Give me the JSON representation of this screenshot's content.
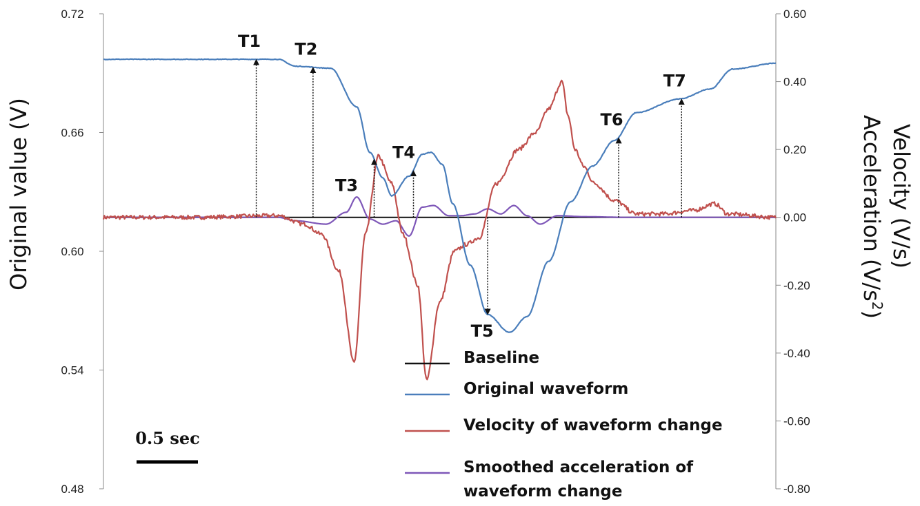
{
  "chart_data": {
    "type": "line",
    "left_axis": {
      "label": "Original value (V)",
      "ylim": [
        0.48,
        0.72
      ],
      "ticks": [
        "0.72",
        "0.66",
        "0.60",
        "0.54",
        "0.48"
      ],
      "tick_values": [
        0.72,
        0.66,
        0.6,
        0.54,
        0.48
      ]
    },
    "right_axis": {
      "label_line1": "Velocity (V/s)",
      "label_line2": "Acceleration (V/s",
      "label_superscript": "2",
      "label_close": ")",
      "ylim": [
        -0.8,
        0.6
      ],
      "ticks": [
        "0.60",
        "0.40",
        "0.20",
        "0.00",
        "-0.20",
        "-0.40",
        "-0.60",
        "-0.80"
      ],
      "tick_values": [
        0.6,
        0.4,
        0.2,
        0.0,
        -0.2,
        -0.4,
        -0.6,
        -0.8
      ]
    },
    "x_range_sec": [
      0,
      7.7
    ],
    "grid": false,
    "legend_position": "bottom-right",
    "scale_bar": {
      "label": "0.5 sec",
      "seconds": 0.5
    },
    "series": [
      {
        "name": "Baseline",
        "axis": "right",
        "color": "#111111",
        "x": [
          0,
          7.7
        ],
        "y": [
          0.0,
          0.0
        ]
      },
      {
        "name": "Original waveform",
        "axis": "left",
        "color": "#4a7ebb",
        "x": [
          0,
          1.0,
          2.0,
          2.2,
          2.6,
          2.9,
          3.05,
          3.2,
          3.3,
          3.5,
          3.65,
          3.75,
          3.88,
          4.0,
          4.2,
          4.4,
          4.65,
          4.85,
          5.1,
          5.35,
          5.6,
          5.85,
          6.1,
          6.6,
          6.95,
          7.2,
          7.7
        ],
        "y": [
          0.697,
          0.697,
          0.697,
          0.6935,
          0.6925,
          0.673,
          0.65,
          0.637,
          0.628,
          0.638,
          0.649,
          0.65,
          0.644,
          0.624,
          0.593,
          0.568,
          0.559,
          0.567,
          0.595,
          0.625,
          0.643,
          0.656,
          0.67,
          0.677,
          0.682,
          0.692,
          0.695
        ]
      },
      {
        "name": "Velocity of waveform change",
        "axis": "right",
        "color": "#c0504d",
        "x": [
          0,
          1.0,
          2.0,
          2.3,
          2.5,
          2.7,
          2.87,
          3.0,
          3.15,
          3.3,
          3.43,
          3.6,
          3.7,
          3.85,
          4.02,
          4.15,
          4.3,
          4.5,
          4.75,
          4.95,
          5.1,
          5.25,
          5.32,
          5.4,
          5.5,
          5.62,
          5.85,
          6.1,
          6.4,
          6.75,
          7.0,
          7.15,
          7.7
        ],
        "y": [
          0.0,
          0.0,
          0.005,
          -0.02,
          -0.05,
          -0.16,
          -0.43,
          -0.05,
          0.18,
          0.1,
          -0.05,
          -0.2,
          -0.48,
          -0.25,
          -0.1,
          -0.08,
          -0.06,
          0.1,
          0.2,
          0.25,
          0.32,
          0.4,
          0.3,
          0.2,
          0.15,
          0.1,
          0.05,
          0.01,
          0.01,
          0.02,
          0.04,
          0.01,
          0.0
        ]
      },
      {
        "name": "Smoothed acceleration of waveform change",
        "axis": "right",
        "color": "#7e57b8",
        "x": [
          0,
          1.0,
          2.0,
          2.2,
          2.55,
          2.78,
          2.9,
          3.05,
          3.2,
          3.35,
          3.5,
          3.65,
          3.78,
          3.95,
          4.1,
          4.25,
          4.4,
          4.55,
          4.7,
          4.85,
          5.0,
          5.2,
          5.5,
          6.0,
          7.7
        ],
        "y": [
          0.0,
          0.0,
          0.0,
          -0.01,
          -0.02,
          0.015,
          0.06,
          -0.005,
          -0.02,
          -0.01,
          -0.055,
          0.03,
          0.035,
          0.005,
          0.005,
          0.01,
          0.025,
          0.01,
          0.035,
          0.005,
          -0.02,
          0.005,
          0.002,
          0.0,
          0.0
        ]
      }
    ],
    "events": [
      {
        "label": "T1",
        "x": 1.75
      },
      {
        "label": "T2",
        "x": 2.4
      },
      {
        "label": "T3",
        "x": 3.1
      },
      {
        "label": "T4",
        "x": 3.55
      },
      {
        "label": "T5",
        "x": 4.4
      },
      {
        "label": "T6",
        "x": 5.9
      },
      {
        "label": "T7",
        "x": 6.62
      }
    ]
  }
}
